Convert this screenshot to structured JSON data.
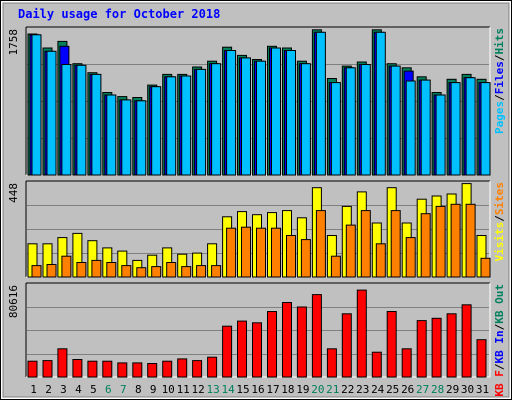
{
  "chart_data": {
    "type": "bar",
    "title": "Daily usage for October 2018",
    "categories": [
      "1",
      "2",
      "3",
      "4",
      "5",
      "6",
      "7",
      "8",
      "9",
      "10",
      "11",
      "12",
      "13",
      "14",
      "15",
      "16",
      "17",
      "18",
      "19",
      "20",
      "21",
      "22",
      "23",
      "24",
      "25",
      "26",
      "27",
      "28",
      "29",
      "30",
      "31"
    ],
    "weekend_days": [
      6,
      7,
      13,
      14,
      20,
      21,
      27,
      28
    ],
    "panels": [
      {
        "key": "hits",
        "max_label": "1758",
        "ylim": [
          0,
          1758
        ],
        "legend": [
          {
            "text": "Pages",
            "color": "#00c0ff"
          },
          {
            "text": "Files",
            "color": "#0000ff"
          },
          {
            "text": "Hits",
            "color": "#00805c"
          }
        ],
        "series": [
          {
            "name": "Hits",
            "color": "#00805c",
            "values": [
              1710,
              1540,
              1620,
              1350,
              1240,
              1000,
              950,
              940,
              1090,
              1220,
              1220,
              1310,
              1380,
              1550,
              1450,
              1400,
              1560,
              1540,
              1380,
              1760,
              1170,
              1320,
              1370,
              1760,
              1350,
              1300,
              1190,
              1000,
              1160,
              1220,
              1160
            ]
          },
          {
            "name": "Files",
            "color": "#0000ff",
            "values": [
              1700,
              1500,
              1560,
              1330,
              1220,
              970,
              910,
              900,
              1070,
              1190,
              1200,
              1280,
              1350,
              1510,
              1420,
              1380,
              1540,
              1510,
              1350,
              1730,
              1120,
              1300,
              1340,
              1730,
              1320,
              1260,
              1150,
              970,
              1120,
              1180,
              1120
            ]
          },
          {
            "name": "Pages",
            "color": "#00c0ff",
            "values": [
              1700,
              1500,
              1340,
              1330,
              1220,
              970,
              910,
              900,
              1070,
              1190,
              1200,
              1280,
              1350,
              1510,
              1420,
              1380,
              1540,
              1510,
              1350,
              1730,
              1120,
              1300,
              1340,
              1730,
              1320,
              1140,
              1150,
              970,
              1120,
              1180,
              1120
            ]
          }
        ]
      },
      {
        "key": "visits",
        "max_label": "448",
        "ylim": [
          0,
          448
        ],
        "legend": [
          {
            "text": "Visits",
            "color": "#ffff00"
          },
          {
            "text": "Sites",
            "color": "#ff8000"
          }
        ],
        "series": [
          {
            "name": "Visits",
            "color": "#ffff00",
            "values": [
              160,
              160,
              190,
              210,
              175,
              140,
              125,
              80,
              105,
              140,
              110,
              115,
              160,
              290,
              315,
              300,
              310,
              320,
              285,
              430,
              200,
              340,
              410,
              260,
              430,
              260,
              375,
              390,
              400,
              450,
              200
            ]
          },
          {
            "name": "Sites",
            "color": "#ff8000",
            "values": [
              55,
              60,
              100,
              70,
              80,
              70,
              55,
              45,
              50,
              70,
              50,
              55,
              55,
              235,
              240,
              235,
              235,
              200,
              180,
              320,
              100,
              250,
              320,
              160,
              320,
              190,
              305,
              340,
              350,
              350,
              90
            ]
          }
        ]
      },
      {
        "key": "kbytes",
        "max_label": "80616",
        "ylim": [
          0,
          80616
        ],
        "legend": [
          {
            "text": "KB F",
            "color": "#ff0000"
          },
          {
            "text": "KB In",
            "color": "#0000ff"
          },
          {
            "text": "KB Out",
            "color": "#00805c"
          }
        ],
        "series": [
          {
            "name": "KB F",
            "color": "#ff0000",
            "values": [
              14000,
              14500,
              25000,
              15500,
              14000,
              14000,
              12500,
              12500,
              12000,
              14000,
              16000,
              14500,
              17500,
              45000,
              49500,
              48000,
              58000,
              66000,
              62000,
              73000,
              25000,
              56000,
              77000,
              22000,
              58000,
              25000,
              50000,
              52000,
              56000,
              64000,
              33000
            ]
          }
        ]
      }
    ]
  }
}
